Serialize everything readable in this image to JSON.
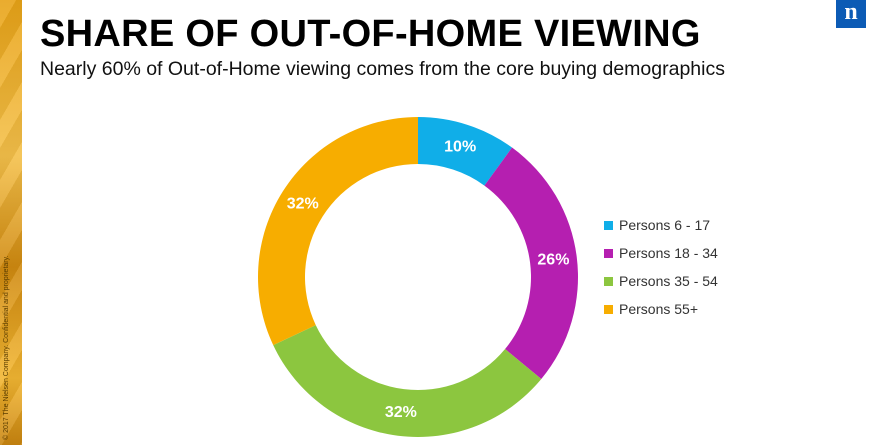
{
  "slide": {
    "title": "SHARE OF OUT-OF-HOME VIEWING",
    "subtitle": "Nearly 60% of Out-of-Home viewing comes from the core buying demographics",
    "copyright": "© 2017 The Nielsen Company. Confidential and proprietary.",
    "logo_letter": "n"
  },
  "colors": {
    "brand_blue": "#0c5bb5",
    "side_strip": "#e8a317"
  },
  "chart_data": {
    "type": "pie",
    "variant": "donut",
    "title": "",
    "categories": [
      "Persons 6 - 17",
      "Persons 18 - 34",
      "Persons 35 - 54",
      "Persons 55+"
    ],
    "values": [
      10,
      26,
      32,
      32
    ],
    "labels": [
      "10%",
      "26%",
      "32%",
      "32%"
    ],
    "colors": [
      "#10aee8",
      "#b51fb0",
      "#8cc63f",
      "#f7ad00"
    ],
    "legend_position": "right",
    "start_angle_deg": 0,
    "direction": "clockwise"
  }
}
